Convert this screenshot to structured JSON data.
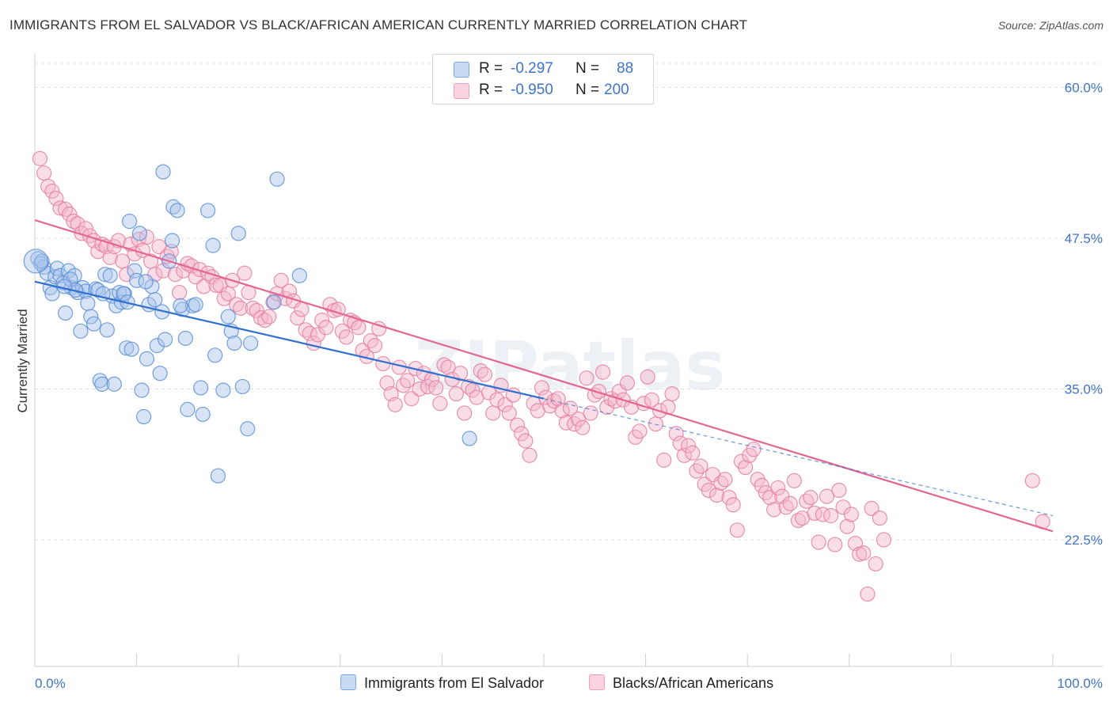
{
  "header": {
    "title": "IMMIGRANTS FROM EL SALVADOR VS BLACK/AFRICAN AMERICAN CURRENTLY MARRIED CORRELATION CHART",
    "source": "Source: ZipAtlas.com"
  },
  "legend": {
    "r_label": "R =",
    "n_label": "N =",
    "rows": [
      {
        "series": "Immigrants from El Salvador",
        "r": "-0.297",
        "n": "88",
        "color": "#a9c4ea",
        "stroke": "#5a8fd6"
      },
      {
        "series": "Blacks/African Americans",
        "r": "-0.950",
        "n": "200",
        "color": "#f5b6ca",
        "stroke": "#e57fa0"
      }
    ]
  },
  "watermark": "ZIPatlas",
  "colors": {
    "blue_line": "#2f6fd0",
    "pink_line": "#e2668f",
    "axis_label": "#3f74c9",
    "grid": "#e0e0e0"
  },
  "chart_data": {
    "type": "scatter",
    "title": "IMMIGRANTS FROM EL SALVADOR VS BLACK/AFRICAN AMERICAN CURRENTLY MARRIED CORRELATION CHART",
    "xlabel": "",
    "ylabel": "Currently Married",
    "xlim": [
      0,
      100
    ],
    "ylim": [
      12.0,
      62.0
    ],
    "x_tick_labels": [
      "0.0%",
      "100.0%"
    ],
    "y_ticks": [
      22.5,
      35.0,
      47.5,
      60.0
    ],
    "y_tick_labels": [
      "22.5%",
      "35.0%",
      "47.5%",
      "60.0%"
    ],
    "grid": true,
    "legend_position": "top-center",
    "series": [
      {
        "name": "Immigrants from El Salvador",
        "color": "#a9c4ea",
        "stroke": "#5a8fd6",
        "trend": {
          "x": [
            0,
            50
          ],
          "y": [
            43.9,
            34.2
          ],
          "dashed_extension_to_x": 100,
          "dashed_end_y": 24.5
        },
        "points": [
          [
            0.3,
            45.8
          ],
          [
            0.6,
            45.4
          ],
          [
            0.9,
            45.1
          ],
          [
            1.2,
            44.6
          ],
          [
            1.5,
            43.4
          ],
          [
            1.7,
            42.9
          ],
          [
            2.0,
            44.3
          ],
          [
            2.2,
            45.0
          ],
          [
            2.5,
            44.4
          ],
          [
            2.8,
            43.8
          ],
          [
            3.0,
            41.3
          ],
          [
            3.3,
            44.8
          ],
          [
            3.6,
            43.4
          ],
          [
            3.9,
            44.4
          ],
          [
            4.2,
            43.0
          ],
          [
            4.5,
            39.8
          ],
          [
            4.7,
            43.4
          ],
          [
            5.0,
            43.1
          ],
          [
            5.2,
            42.1
          ],
          [
            5.5,
            41.0
          ],
          [
            5.8,
            40.4
          ],
          [
            6.0,
            43.3
          ],
          [
            6.2,
            43.2
          ],
          [
            6.4,
            35.7
          ],
          [
            6.6,
            35.4
          ],
          [
            6.9,
            44.5
          ],
          [
            7.1,
            39.9
          ],
          [
            7.4,
            44.4
          ],
          [
            7.6,
            42.7
          ],
          [
            7.8,
            35.4
          ],
          [
            8.0,
            41.9
          ],
          [
            8.3,
            43.0
          ],
          [
            8.5,
            42.2
          ],
          [
            8.8,
            42.9
          ],
          [
            9.0,
            38.4
          ],
          [
            9.3,
            48.9
          ],
          [
            9.5,
            38.3
          ],
          [
            9.8,
            44.8
          ],
          [
            10.0,
            44.0
          ],
          [
            10.3,
            47.9
          ],
          [
            10.5,
            34.9
          ],
          [
            10.7,
            32.7
          ],
          [
            11.0,
            37.5
          ],
          [
            11.2,
            42.0
          ],
          [
            11.5,
            43.5
          ],
          [
            11.8,
            42.4
          ],
          [
            12.0,
            38.6
          ],
          [
            12.3,
            36.3
          ],
          [
            12.5,
            41.4
          ],
          [
            12.8,
            39.1
          ],
          [
            13.2,
            45.6
          ],
          [
            13.5,
            47.3
          ],
          [
            13.6,
            50.1
          ],
          [
            14.0,
            49.8
          ],
          [
            14.5,
            41.6
          ],
          [
            14.8,
            39.2
          ],
          [
            15.0,
            33.3
          ],
          [
            15.5,
            41.9
          ],
          [
            15.8,
            42.0
          ],
          [
            16.3,
            35.1
          ],
          [
            16.5,
            32.9
          ],
          [
            17.0,
            49.8
          ],
          [
            17.5,
            46.9
          ],
          [
            17.7,
            37.8
          ],
          [
            18.0,
            27.8
          ],
          [
            18.5,
            34.9
          ],
          [
            19.0,
            41.0
          ],
          [
            19.3,
            39.8
          ],
          [
            19.6,
            38.8
          ],
          [
            20.0,
            47.9
          ],
          [
            20.4,
            35.2
          ],
          [
            20.9,
            31.7
          ],
          [
            21.2,
            38.8
          ],
          [
            23.5,
            42.2
          ],
          [
            23.8,
            52.4
          ],
          [
            26.0,
            44.4
          ],
          [
            42.7,
            30.9
          ],
          [
            0.7,
            45.6
          ],
          [
            3.5,
            44.1
          ],
          [
            4.0,
            43.2
          ],
          [
            8.7,
            42.9
          ],
          [
            10.9,
            43.9
          ],
          [
            12.6,
            53.0
          ],
          [
            2.9,
            43.5
          ],
          [
            6.7,
            42.9
          ],
          [
            9.1,
            42.2
          ],
          [
            14.3,
            41.9
          ],
          [
            0.1,
            45.6
          ]
        ]
      },
      {
        "name": "Blacks/African Americans",
        "color": "#f5b6ca",
        "stroke": "#e57fa0",
        "trend": {
          "x": [
            0,
            100
          ],
          "y": [
            49.0,
            23.2
          ]
        },
        "points": [
          [
            0.5,
            54.1
          ],
          [
            0.9,
            52.9
          ],
          [
            1.3,
            51.8
          ],
          [
            1.7,
            51.4
          ],
          [
            2.1,
            50.8
          ],
          [
            2.5,
            50.0
          ],
          [
            3.0,
            49.9
          ],
          [
            3.4,
            49.5
          ],
          [
            3.8,
            48.9
          ],
          [
            4.2,
            48.7
          ],
          [
            4.6,
            47.9
          ],
          [
            5.0,
            48.3
          ],
          [
            5.4,
            47.7
          ],
          [
            5.8,
            47.3
          ],
          [
            6.2,
            46.4
          ],
          [
            6.6,
            47.0
          ],
          [
            7.0,
            46.8
          ],
          [
            7.4,
            45.9
          ],
          [
            7.8,
            46.8
          ],
          [
            8.2,
            47.3
          ],
          [
            8.6,
            45.6
          ],
          [
            9.0,
            44.5
          ],
          [
            9.4,
            47.0
          ],
          [
            9.8,
            46.2
          ],
          [
            10.2,
            47.4
          ],
          [
            10.6,
            46.5
          ],
          [
            11.0,
            47.6
          ],
          [
            11.4,
            45.6
          ],
          [
            11.8,
            44.5
          ],
          [
            12.2,
            46.8
          ],
          [
            12.6,
            44.8
          ],
          [
            13.0,
            46.0
          ],
          [
            13.4,
            46.4
          ],
          [
            13.8,
            44.5
          ],
          [
            14.2,
            43.0
          ],
          [
            14.6,
            44.8
          ],
          [
            15.0,
            45.4
          ],
          [
            15.4,
            45.2
          ],
          [
            15.8,
            44.3
          ],
          [
            16.2,
            44.9
          ],
          [
            16.6,
            43.5
          ],
          [
            17.0,
            44.6
          ],
          [
            17.4,
            44.3
          ],
          [
            17.8,
            43.6
          ],
          [
            18.2,
            43.6
          ],
          [
            18.6,
            42.5
          ],
          [
            19.0,
            42.9
          ],
          [
            19.4,
            44.0
          ],
          [
            19.8,
            42.0
          ],
          [
            20.2,
            41.7
          ],
          [
            20.6,
            44.6
          ],
          [
            21.0,
            43.0
          ],
          [
            21.4,
            41.7
          ],
          [
            21.8,
            41.5
          ],
          [
            22.2,
            40.9
          ],
          [
            22.6,
            40.7
          ],
          [
            23.0,
            41.0
          ],
          [
            23.4,
            42.2
          ],
          [
            23.8,
            42.9
          ],
          [
            24.2,
            44.0
          ],
          [
            24.6,
            42.5
          ],
          [
            25.0,
            43.1
          ],
          [
            25.4,
            42.3
          ],
          [
            25.8,
            40.9
          ],
          [
            26.2,
            41.6
          ],
          [
            26.6,
            39.9
          ],
          [
            27.0,
            39.6
          ],
          [
            27.4,
            38.8
          ],
          [
            27.8,
            39.5
          ],
          [
            28.2,
            40.7
          ],
          [
            28.6,
            40.1
          ],
          [
            29.0,
            42.0
          ],
          [
            29.4,
            41.5
          ],
          [
            29.8,
            41.6
          ],
          [
            30.2,
            39.8
          ],
          [
            30.6,
            39.3
          ],
          [
            31.0,
            40.7
          ],
          [
            31.4,
            40.5
          ],
          [
            31.8,
            40.1
          ],
          [
            32.2,
            38.2
          ],
          [
            32.6,
            37.7
          ],
          [
            33.0,
            39.0
          ],
          [
            33.4,
            38.6
          ],
          [
            33.8,
            40.0
          ],
          [
            34.2,
            37.1
          ],
          [
            34.6,
            35.5
          ],
          [
            35.0,
            34.6
          ],
          [
            35.4,
            33.7
          ],
          [
            35.8,
            36.8
          ],
          [
            36.2,
            35.3
          ],
          [
            36.6,
            35.7
          ],
          [
            37.0,
            34.2
          ],
          [
            37.4,
            36.7
          ],
          [
            37.8,
            35.0
          ],
          [
            38.2,
            36.3
          ],
          [
            38.6,
            35.2
          ],
          [
            39.0,
            35.8
          ],
          [
            39.4,
            35.1
          ],
          [
            39.8,
            33.8
          ],
          [
            40.2,
            37.0
          ],
          [
            40.6,
            36.8
          ],
          [
            41.0,
            35.8
          ],
          [
            41.4,
            34.6
          ],
          [
            41.8,
            36.3
          ],
          [
            42.2,
            33.0
          ],
          [
            42.6,
            35.2
          ],
          [
            43.0,
            34.9
          ],
          [
            43.4,
            34.3
          ],
          [
            43.8,
            36.5
          ],
          [
            44.2,
            36.2
          ],
          [
            44.6,
            34.7
          ],
          [
            45.0,
            33.0
          ],
          [
            45.4,
            34.1
          ],
          [
            45.8,
            35.3
          ],
          [
            46.2,
            33.7
          ],
          [
            46.6,
            33.0
          ],
          [
            47.0,
            34.5
          ],
          [
            47.4,
            32.0
          ],
          [
            47.8,
            31.3
          ],
          [
            48.2,
            30.7
          ],
          [
            48.6,
            29.5
          ],
          [
            49.0,
            33.8
          ],
          [
            49.4,
            33.2
          ],
          [
            49.8,
            35.1
          ],
          [
            50.2,
            34.3
          ],
          [
            50.6,
            33.6
          ],
          [
            51.0,
            34.0
          ],
          [
            51.4,
            34.2
          ],
          [
            51.8,
            33.2
          ],
          [
            52.2,
            32.2
          ],
          [
            52.6,
            33.4
          ],
          [
            53.0,
            32.1
          ],
          [
            53.4,
            32.5
          ],
          [
            53.8,
            31.8
          ],
          [
            54.2,
            35.9
          ],
          [
            54.6,
            33.0
          ],
          [
            55.0,
            34.5
          ],
          [
            55.4,
            34.8
          ],
          [
            55.8,
            36.4
          ],
          [
            56.2,
            33.5
          ],
          [
            56.6,
            34.2
          ],
          [
            57.0,
            34.0
          ],
          [
            57.4,
            34.8
          ],
          [
            57.8,
            34.1
          ],
          [
            58.2,
            35.5
          ],
          [
            58.6,
            33.5
          ],
          [
            59.0,
            31.0
          ],
          [
            59.4,
            31.5
          ],
          [
            59.8,
            33.8
          ],
          [
            60.2,
            36.0
          ],
          [
            60.6,
            34.1
          ],
          [
            61.0,
            32.1
          ],
          [
            61.4,
            33.2
          ],
          [
            61.8,
            29.1
          ],
          [
            62.2,
            33.5
          ],
          [
            62.6,
            34.6
          ],
          [
            63.0,
            31.3
          ],
          [
            63.4,
            30.5
          ],
          [
            63.8,
            29.5
          ],
          [
            64.2,
            30.3
          ],
          [
            64.6,
            29.7
          ],
          [
            65.0,
            28.2
          ],
          [
            65.4,
            28.6
          ],
          [
            65.8,
            27.1
          ],
          [
            66.2,
            26.6
          ],
          [
            66.6,
            27.9
          ],
          [
            67.0,
            26.2
          ],
          [
            67.4,
            27.2
          ],
          [
            67.8,
            27.5
          ],
          [
            68.2,
            26.0
          ],
          [
            68.6,
            25.4
          ],
          [
            69.0,
            23.3
          ],
          [
            69.4,
            29.0
          ],
          [
            69.8,
            28.5
          ],
          [
            70.2,
            29.5
          ],
          [
            70.6,
            30.0
          ],
          [
            71.0,
            27.5
          ],
          [
            71.4,
            27.0
          ],
          [
            71.8,
            26.4
          ],
          [
            72.2,
            26.0
          ],
          [
            72.6,
            25.0
          ],
          [
            73.0,
            26.8
          ],
          [
            73.4,
            26.1
          ],
          [
            73.8,
            25.2
          ],
          [
            74.2,
            25.5
          ],
          [
            74.6,
            27.4
          ],
          [
            75.0,
            24.1
          ],
          [
            75.4,
            24.3
          ],
          [
            75.8,
            25.7
          ],
          [
            76.2,
            26.0
          ],
          [
            76.6,
            24.7
          ],
          [
            77.0,
            22.3
          ],
          [
            77.4,
            24.6
          ],
          [
            77.8,
            26.1
          ],
          [
            78.2,
            24.5
          ],
          [
            78.6,
            22.1
          ],
          [
            79.0,
            26.6
          ],
          [
            79.4,
            25.2
          ],
          [
            79.8,
            23.6
          ],
          [
            80.2,
            24.6
          ],
          [
            80.6,
            22.2
          ],
          [
            81.0,
            21.3
          ],
          [
            81.4,
            21.4
          ],
          [
            81.8,
            18.0
          ],
          [
            82.2,
            25.1
          ],
          [
            82.6,
            20.5
          ],
          [
            83.0,
            24.3
          ],
          [
            83.4,
            22.5
          ],
          [
            98.0,
            27.4
          ],
          [
            99.0,
            24.0
          ]
        ]
      }
    ]
  },
  "bottom_legend": [
    {
      "label": "Immigrants from El Salvador"
    },
    {
      "label": "Blacks/African Americans"
    }
  ]
}
